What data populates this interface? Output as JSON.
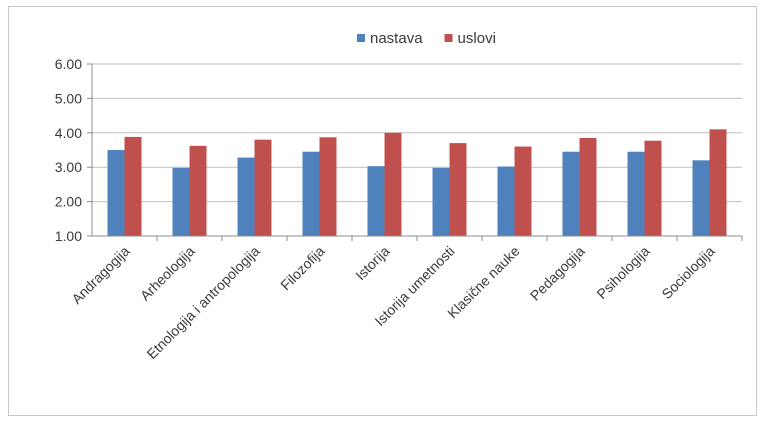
{
  "chart_data": {
    "type": "bar",
    "title": "",
    "xlabel": "",
    "ylabel": "",
    "categories": [
      "Andragogija",
      "Arheologija",
      "Etnologija i antropologija",
      "Filozofija",
      "Istorija",
      "Istorija umetnosti",
      "Klasične nauke",
      "Pedagogija",
      "Psihologija",
      "Sociologija"
    ],
    "series": [
      {
        "name": "nastava",
        "color": "#4f81bd",
        "values": [
          3.5,
          2.98,
          3.28,
          3.45,
          3.03,
          2.98,
          3.02,
          3.45,
          3.45,
          3.2
        ]
      },
      {
        "name": "uslovi",
        "color": "#c0504d",
        "values": [
          3.88,
          3.62,
          3.8,
          3.87,
          4.0,
          3.7,
          3.6,
          3.85,
          3.77,
          4.1
        ]
      }
    ],
    "ylim": [
      1,
      6
    ],
    "yticks": [
      "1.00",
      "2.00",
      "3.00",
      "4.00",
      "5.00",
      "6.00"
    ],
    "grid": true,
    "legend_position": "top-center"
  }
}
